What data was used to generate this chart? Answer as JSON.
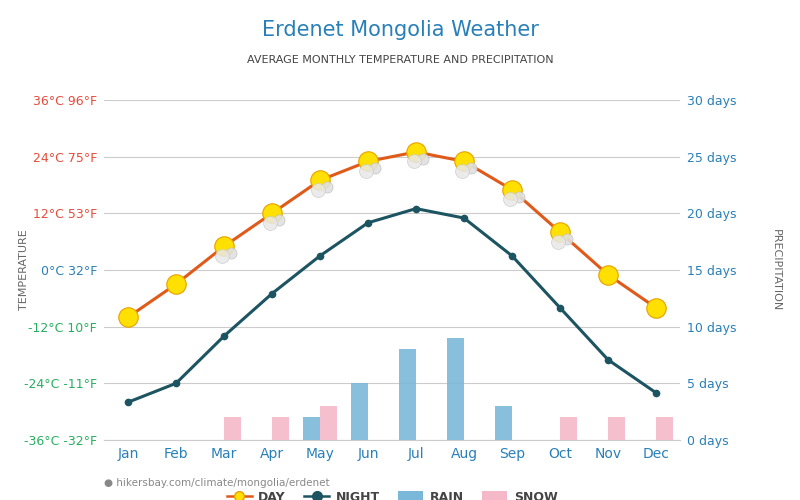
{
  "title": "Erdenet Mongolia Weather",
  "subtitle": "AVERAGE MONTHLY TEMPERATURE AND PRECIPITATION",
  "months": [
    "Jan",
    "Feb",
    "Mar",
    "Apr",
    "May",
    "Jun",
    "Jul",
    "Aug",
    "Sep",
    "Oct",
    "Nov",
    "Dec"
  ],
  "day_temp": [
    -10,
    -3,
    5,
    12,
    19,
    23,
    25,
    23,
    17,
    8,
    -1,
    -8
  ],
  "night_temp": [
    -28,
    -24,
    -14,
    -5,
    3,
    10,
    13,
    11,
    3,
    -8,
    -19,
    -26
  ],
  "rain_days": [
    0,
    0,
    0,
    0,
    2,
    5,
    8,
    9,
    3,
    0,
    0,
    0
  ],
  "snow_days": [
    0,
    0,
    2,
    2,
    3,
    0,
    0,
    0,
    0,
    2,
    2,
    2
  ],
  "temp_yticks": [
    -36,
    -24,
    -12,
    0,
    12,
    24,
    36
  ],
  "temp_ylabels_left": [
    "-36°C -32°F",
    "-24°C -11°F",
    "-12°C 10°F",
    "0°C 32°F",
    "12°C 53°F",
    "24°C 75°F",
    "36°C 96°F"
  ],
  "precip_yticks": [
    0,
    5,
    10,
    15,
    20,
    25,
    30
  ],
  "precip_ylabels": [
    "0 days",
    "5 days",
    "10 days",
    "15 days",
    "20 days",
    "25 days",
    "30 days"
  ],
  "day_color": "#e05a1a",
  "night_color": "#1c5461",
  "rain_color": "#7ab8d9",
  "snow_color": "#f4b8c8",
  "title_color": "#2980b9",
  "subtitle_color": "#444444",
  "ytick_color_positive": "#e74c3c",
  "ytick_color_zero": "#2980b9",
  "ytick_color_negative": "#27ae60",
  "right_axis_color": "#2980b9",
  "grid_color": "#cccccc",
  "background_color": "#ffffff",
  "footer_text": "hikersbay.com/climate/mongolia/erdenet",
  "temp_min": -36,
  "temp_max": 36,
  "precip_min": 0,
  "precip_max": 30
}
